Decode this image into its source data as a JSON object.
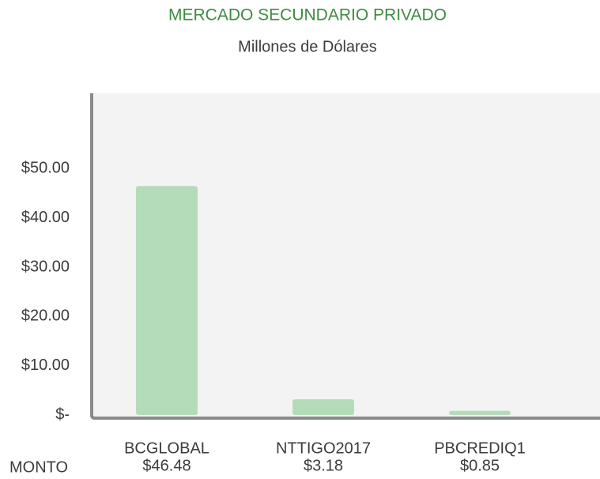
{
  "chart_data": {
    "type": "bar",
    "title": "MERCADO SECUNDARIO PRIVADO",
    "subtitle": "Millones de Dólares",
    "categories": [
      "BCGLOBAL",
      "NTTIGO2017",
      "PBCREDIQ1"
    ],
    "values": [
      46.48,
      3.18,
      0.85
    ],
    "value_labels": [
      "$46.48",
      "$3.18",
      "$0.85"
    ],
    "row_label": "MONTO",
    "color": "#b5dcb9",
    "ylim": [
      0,
      65
    ],
    "yticks": [
      {
        "value": 0,
        "label": "$-"
      },
      {
        "value": 10,
        "label": "$10.00"
      },
      {
        "value": 20,
        "label": "$20.00"
      },
      {
        "value": 30,
        "label": "$30.00"
      },
      {
        "value": 40,
        "label": "$40.00"
      },
      {
        "value": 50,
        "label": "$50.00"
      }
    ],
    "grid": false
  }
}
